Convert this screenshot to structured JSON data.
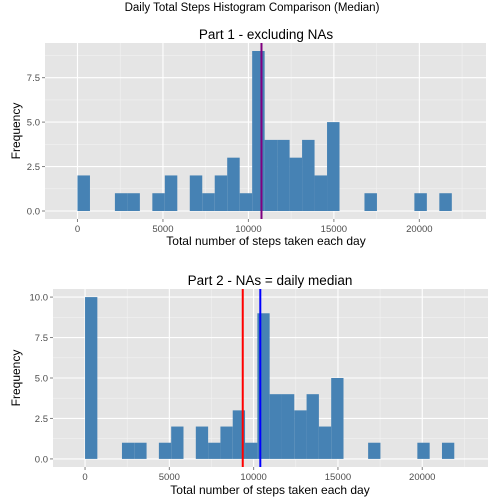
{
  "figure": {
    "title": "Daily Total Steps Histogram Comparison (Median)"
  },
  "chart_data": [
    {
      "type": "bar",
      "title": "Part 1 - excluding NAs",
      "xlabel": "Total number of steps taken each day",
      "ylabel": "Frequency",
      "xlim": [
        -1900,
        23900
      ],
      "ylim": [
        -0.45,
        9.45
      ],
      "x_ticks": [
        0,
        5000,
        10000,
        15000,
        20000
      ],
      "x_tick_labels": [
        "0",
        "5000",
        "10000",
        "15000",
        "20000"
      ],
      "y_ticks": [
        0,
        2.5,
        5,
        7.5
      ],
      "y_tick_labels": [
        "0.0",
        "2.5",
        "5.0",
        "7.5"
      ],
      "bin_width": 730,
      "bin_centers": [
        365,
        1095,
        1825,
        2555,
        3285,
        4015,
        4745,
        5475,
        6205,
        6935,
        7665,
        8395,
        9125,
        9855,
        10585,
        11315,
        12045,
        12775,
        13505,
        14235,
        14965,
        15695,
        16425,
        17155,
        17885,
        18615,
        19345,
        20075,
        20805,
        21535
      ],
      "counts": [
        2,
        0,
        0,
        1,
        1,
        0,
        1,
        2,
        0,
        2,
        1,
        2,
        3,
        1,
        9,
        4,
        4,
        3,
        4,
        2,
        5,
        0,
        0,
        1,
        0,
        0,
        0,
        1,
        0,
        1
      ],
      "bar_color": "#4682B4",
      "median_lines": [
        {
          "x": 10765,
          "color": "#800080"
        }
      ],
      "grid": true
    },
    {
      "type": "bar",
      "title": "Part 2 - NAs = daily median",
      "xlabel": "Total number of steps taken each day",
      "ylabel": "Frequency",
      "xlim": [
        -1900,
        23900
      ],
      "ylim": [
        -0.5,
        10.5
      ],
      "x_ticks": [
        0,
        5000,
        10000,
        15000,
        20000
      ],
      "x_tick_labels": [
        "0",
        "5000",
        "10000",
        "15000",
        "20000"
      ],
      "y_ticks": [
        0,
        2.5,
        5,
        7.5,
        10
      ],
      "y_tick_labels": [
        "0.0",
        "2.5",
        "5.0",
        "7.5",
        "10.0"
      ],
      "bin_width": 730,
      "bin_centers": [
        365,
        1095,
        1825,
        2555,
        3285,
        4015,
        4745,
        5475,
        6205,
        6935,
        7665,
        8395,
        9125,
        9855,
        10585,
        11315,
        12045,
        12775,
        13505,
        14235,
        14965,
        15695,
        16425,
        17155,
        17885,
        18615,
        19345,
        20075,
        20805,
        21535
      ],
      "counts": [
        10,
        0,
        0,
        1,
        1,
        0,
        1,
        2,
        0,
        2,
        1,
        2,
        3,
        1,
        9,
        4,
        4,
        3,
        4,
        2,
        5,
        0,
        0,
        1,
        0,
        0,
        0,
        1,
        0,
        1
      ],
      "bar_color": "#4682B4",
      "median_lines": [
        {
          "x": 9354,
          "color": "#FF0000"
        },
        {
          "x": 10395,
          "color": "#0000FF"
        }
      ],
      "grid": true
    }
  ]
}
